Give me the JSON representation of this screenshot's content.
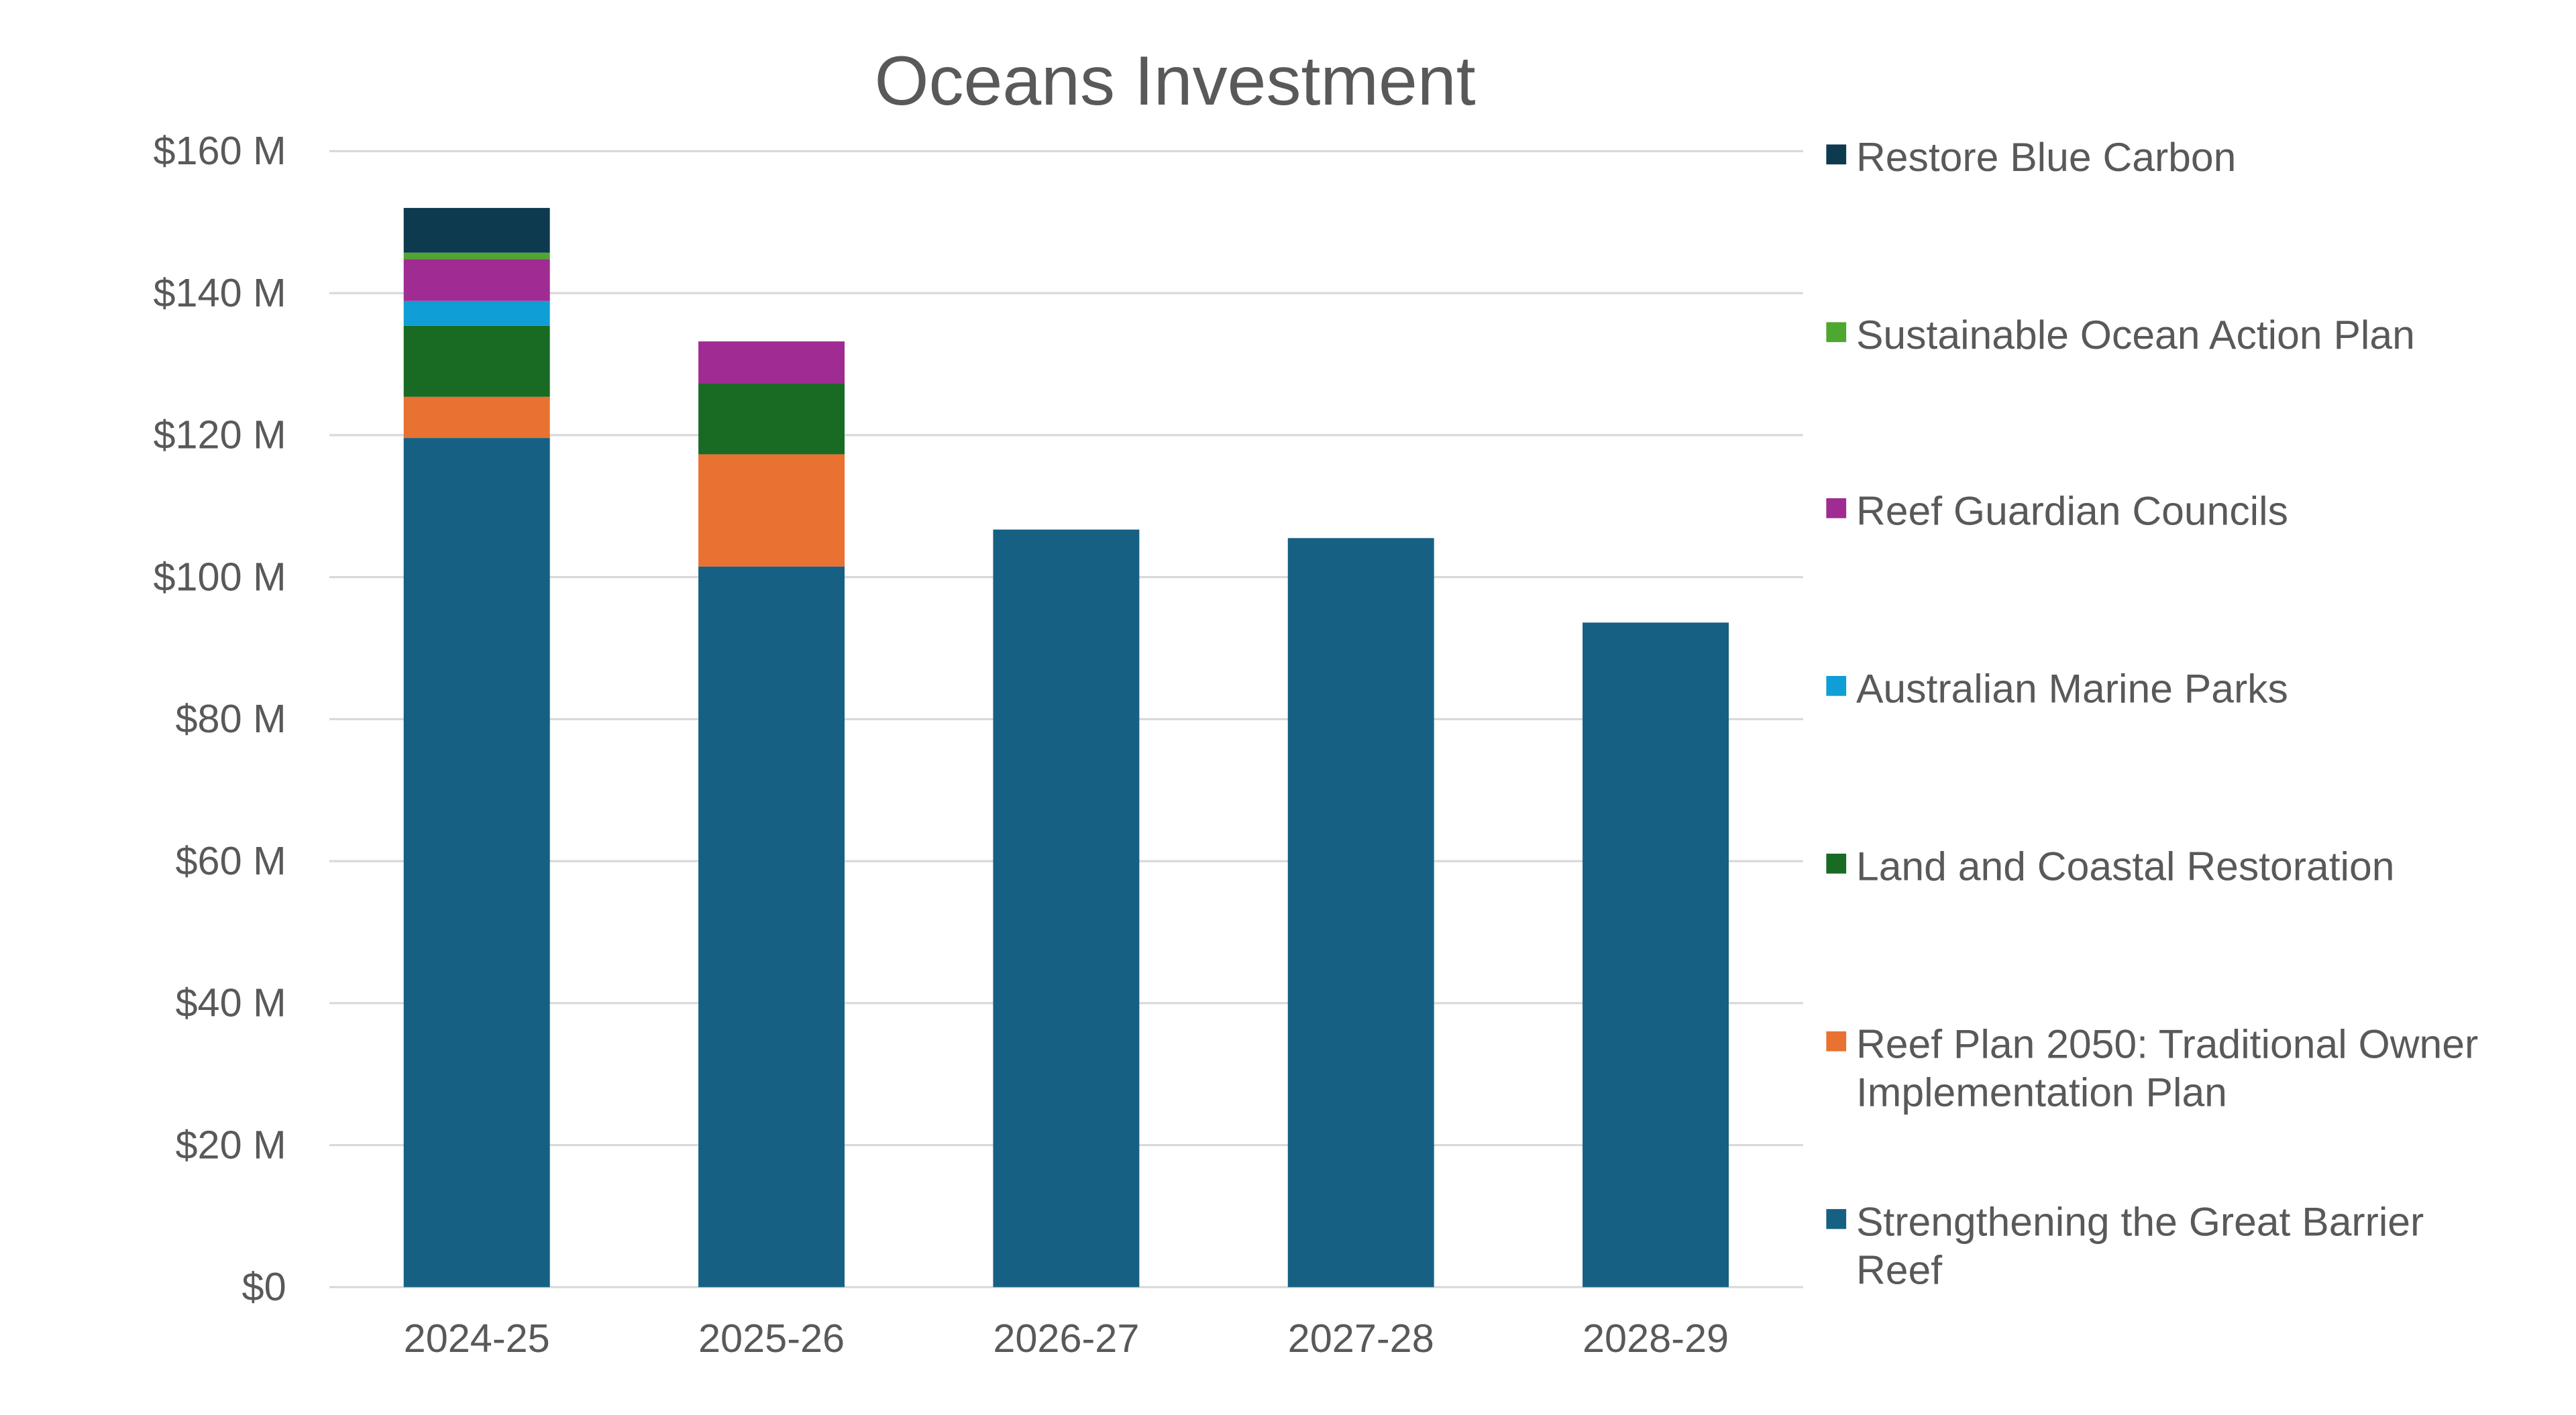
{
  "chart_data": {
    "type": "bar",
    "stacked": true,
    "title": "Oceans Investment",
    "xlabel": "",
    "ylabel": "",
    "ylim": [
      0,
      160
    ],
    "yticks": [
      0,
      20,
      40,
      60,
      80,
      100,
      120,
      140,
      160
    ],
    "ytick_labels": [
      "$0",
      "$20 M",
      "$40 M",
      "$60 M",
      "$80 M",
      "$100 M",
      "$120 M",
      "$140 M",
      "$160 M"
    ],
    "grid": true,
    "legend_position": "right",
    "categories": [
      "2024-25",
      "2025-26",
      "2026-27",
      "2027-28",
      "2028-29"
    ],
    "series": [
      {
        "name": "Strengthening the Great Barrier Reef",
        "name_lines": [
          "Strengthening the Great Barrier",
          "Reef"
        ],
        "color": "#166083",
        "values": [
          119.6,
          101.5,
          106.7,
          105.5,
          93.6
        ]
      },
      {
        "name": "Reef Plan 2050: Traditional Owner Implementation Plan",
        "name_lines": [
          "Reef Plan 2050: Traditional Owner",
          "Implementation Plan"
        ],
        "color": "#E97132",
        "values": [
          5.8,
          15.8,
          0,
          0,
          0
        ]
      },
      {
        "name": "Land and Coastal Restoration",
        "name_lines": [
          "Land and Coastal Restoration"
        ],
        "color": "#196B24",
        "values": [
          10.0,
          10.0,
          0,
          0,
          0
        ]
      },
      {
        "name": "Australian Marine Parks",
        "name_lines": [
          "Australian Marine Parks"
        ],
        "color": "#0F9ED5",
        "values": [
          3.5,
          0,
          0,
          0,
          0
        ]
      },
      {
        "name": "Reef Guardian Councils",
        "name_lines": [
          "Reef Guardian Councils"
        ],
        "color": "#A02B93",
        "values": [
          5.9,
          5.9,
          0,
          0,
          0
        ]
      },
      {
        "name": "Sustainable Ocean Action Plan",
        "name_lines": [
          "Sustainable Ocean Action Plan"
        ],
        "color": "#4EA72E",
        "values": [
          0.9,
          0,
          0,
          0,
          0
        ]
      },
      {
        "name": "Restore Blue Carbon",
        "name_lines": [
          "Restore Blue Carbon"
        ],
        "color": "#0E3A50",
        "values": [
          6.3,
          0,
          0,
          0,
          0
        ]
      }
    ]
  }
}
